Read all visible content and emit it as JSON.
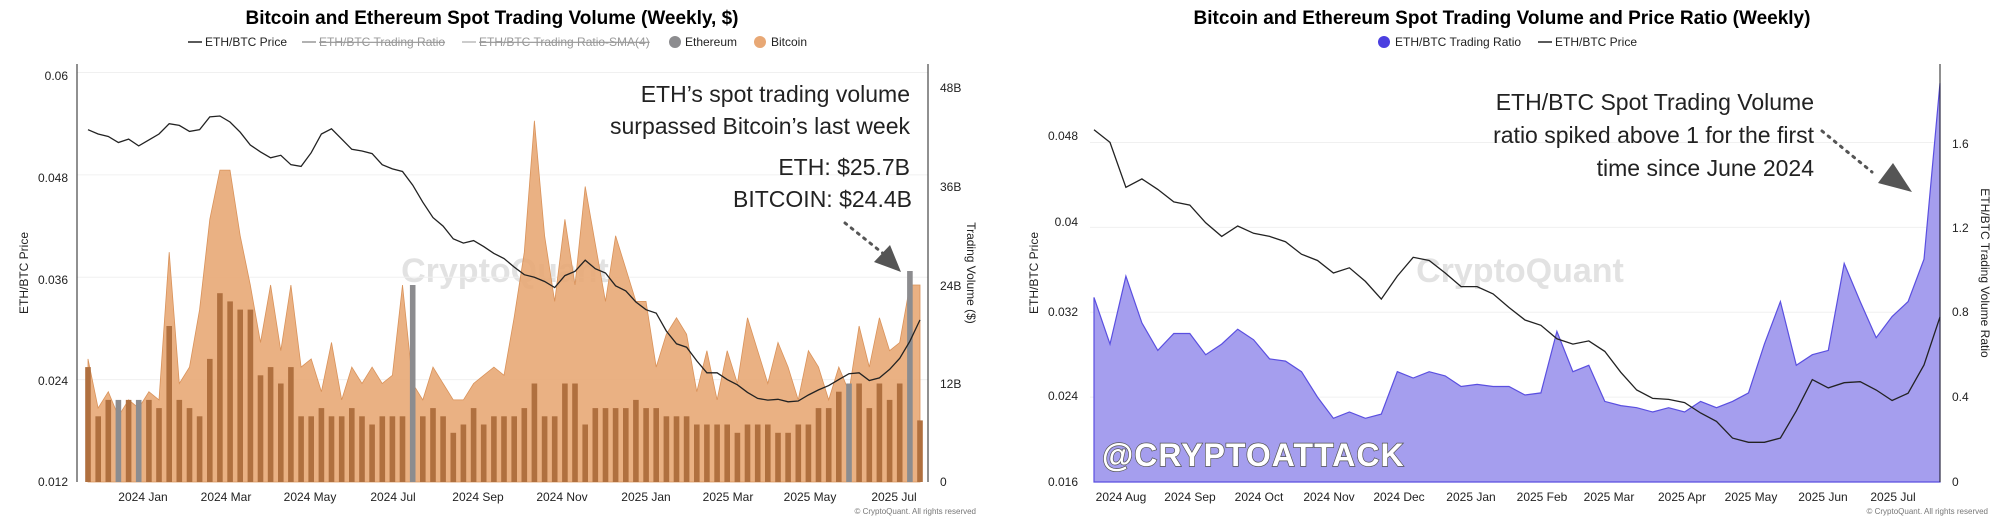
{
  "chart_data": [
    {
      "type": "area",
      "title": "Bitcoin and Ethereum Spot Trading Volume (Weekly, $)",
      "legend": [
        "ETH/BTC Price",
        "ETH/BTC Trading Ratio",
        "ETH/BTC Trading Ratio-SMA(4)",
        "Ethereum",
        "Bitcoin"
      ],
      "legend_placement": "top-center",
      "hidden_series": [
        "ETH/BTC Trading Ratio",
        "ETH/BTC Trading Ratio-SMA(4)"
      ],
      "ylabel_left": "ETH/BTC Price",
      "ylabel_right": "Trading Volume ($)",
      "y_left_ticks": [
        "0.012",
        "0.024",
        "0.036",
        "0.048",
        "0.06"
      ],
      "y_left_lim": [
        0.012,
        0.061
      ],
      "y_right_ticks": [
        "0",
        "12B",
        "24B",
        "36B",
        "48B"
      ],
      "y_right_lim": [
        0,
        48
      ],
      "x_ticks": [
        "2024 Jan",
        "2024 Mar",
        "2024 May",
        "2024 Jul",
        "2024 Sep",
        "2024 Nov",
        "2025 Jan",
        "2025 Mar",
        "2025 May",
        "2025 Jul"
      ],
      "annotation_lines": [
        "ETH’s spot trading volume",
        "surpassed Bitcoin’s last week",
        "ETH: $25.7B",
        "BITCOIN: $24.4B"
      ],
      "watermark": "CryptoQuant",
      "copyright": "© CryptoQuant. All rights reserved",
      "colors": {
        "bitcoin": "#e8a875",
        "ethereum": "#8c8c8f",
        "eth_bar_over_btc": "#b0703f",
        "price": "#222222"
      },
      "series": [
        {
          "name": "Bitcoin",
          "unit": "B USD",
          "values": [
            15,
            9,
            11,
            8,
            10,
            9,
            11,
            10,
            28,
            12,
            14,
            21,
            32,
            38,
            38,
            30,
            24,
            17,
            24,
            16,
            24,
            14,
            15,
            11,
            17,
            10,
            14,
            12,
            14,
            12,
            13,
            24,
            12,
            10,
            14,
            12,
            10,
            10,
            12,
            13,
            14,
            13,
            20,
            28,
            44,
            30,
            22,
            32,
            24,
            36,
            29,
            22,
            30,
            26,
            22,
            22,
            14,
            18,
            20,
            18,
            11,
            16,
            10,
            16,
            12,
            20,
            16,
            12,
            17,
            14,
            10,
            16,
            14,
            10,
            14,
            11,
            19,
            14,
            20,
            16,
            17,
            24,
            24
          ]
        },
        {
          "name": "Ethereum",
          "unit": "B USD",
          "values": [
            14,
            8,
            10,
            10,
            10,
            10,
            10,
            9,
            19,
            10,
            9,
            8,
            15,
            23,
            22,
            21,
            21,
            13,
            14,
            12,
            14,
            8,
            8,
            9,
            8,
            8,
            9,
            8,
            7,
            8,
            8,
            8,
            24,
            8,
            9,
            8,
            6,
            7,
            9,
            7,
            8,
            8,
            8,
            9,
            12,
            8,
            8,
            12,
            12,
            7,
            9,
            9,
            9,
            9,
            10,
            9,
            9,
            8,
            8,
            8,
            7,
            7,
            7,
            7,
            6,
            7,
            7,
            7,
            6,
            6,
            7,
            7,
            9,
            9,
            11,
            12,
            12,
            9,
            12,
            10,
            12,
            25.7,
            7.5
          ]
        },
        {
          "name": "ETH/BTC Price",
          "values": [
            0.0533,
            0.0528,
            0.0525,
            0.0518,
            0.0522,
            0.0514,
            0.0521,
            0.0528,
            0.054,
            0.0538,
            0.0531,
            0.0533,
            0.0548,
            0.0549,
            0.0542,
            0.053,
            0.0515,
            0.0507,
            0.05,
            0.0503,
            0.0492,
            0.049,
            0.0506,
            0.0528,
            0.0534,
            0.0522,
            0.051,
            0.0508,
            0.0505,
            0.0492,
            0.0487,
            0.0484,
            0.0468,
            0.0448,
            0.043,
            0.042,
            0.0405,
            0.04,
            0.0403,
            0.0396,
            0.0388,
            0.0382,
            0.0372,
            0.0363,
            0.036,
            0.0355,
            0.0348,
            0.0362,
            0.0367,
            0.038,
            0.037,
            0.0365,
            0.035,
            0.0344,
            0.0331,
            0.0322,
            0.0318,
            0.0297,
            0.0282,
            0.0278,
            0.0262,
            0.0248,
            0.0248,
            0.024,
            0.0234,
            0.0225,
            0.0218,
            0.0216,
            0.0217,
            0.0214,
            0.0215,
            0.0222,
            0.0228,
            0.0233,
            0.024,
            0.0247,
            0.0248,
            0.0239,
            0.0242,
            0.0252,
            0.0265,
            0.0285,
            0.031
          ]
        }
      ]
    },
    {
      "type": "area",
      "title": "Bitcoin and Ethereum Spot Trading Volume and Price Ratio (Weekly)",
      "legend": [
        "ETH/BTC Trading Ratio",
        "ETH/BTC Price"
      ],
      "legend_placement": "top-center",
      "ylabel_left": "ETH/BTC Price",
      "ylabel_right": "ETH/BTC Trading Volume Ratio",
      "y_left_ticks": [
        "0.016",
        "0.024",
        "0.032",
        "0.04",
        "0.048"
      ],
      "y_left_lim": [
        0.016,
        0.056
      ],
      "y_right_ticks": [
        "0",
        "0.4",
        "0.8",
        "1.2",
        "1.6"
      ],
      "y_right_lim": [
        0,
        1.97
      ],
      "x_ticks": [
        "2024 Aug",
        "2024 Sep",
        "2024 Oct",
        "2024 Nov",
        "2024 Dec",
        "2025 Jan",
        "2025 Feb",
        "2025 Mar",
        "2025 Apr",
        "2025 May",
        "2025 Jun",
        "2025 Jul"
      ],
      "annotation_lines": [
        "ETH/BTC Spot Trading Volume",
        "ratio spiked above 1 for the first",
        "time since June 2024"
      ],
      "watermark": "CryptoQuant",
      "handle": "@CRYPTOATTACK",
      "copyright": "© CryptoQuant. All rights reserved",
      "colors": {
        "ratio": "#6a5fe8",
        "ratio_fill": "#a59eee",
        "price": "#222222"
      },
      "series": [
        {
          "name": "ETH/BTC Trading Ratio",
          "values": [
            0.87,
            0.65,
            0.97,
            0.75,
            0.62,
            0.7,
            0.7,
            0.6,
            0.65,
            0.72,
            0.67,
            0.58,
            0.57,
            0.52,
            0.4,
            0.3,
            0.33,
            0.3,
            0.32,
            0.52,
            0.49,
            0.52,
            0.5,
            0.45,
            0.46,
            0.45,
            0.45,
            0.41,
            0.42,
            0.71,
            0.52,
            0.55,
            0.38,
            0.36,
            0.35,
            0.33,
            0.35,
            0.33,
            0.38,
            0.35,
            0.38,
            0.42,
            0.65,
            0.85,
            0.55,
            0.6,
            0.62,
            1.03,
            0.85,
            0.68,
            0.78,
            0.85,
            1.05,
            1.88
          ]
        },
        {
          "name": "ETH/BTC Price",
          "values": [
            0.0497,
            0.0485,
            0.0442,
            0.045,
            0.044,
            0.0428,
            0.0425,
            0.0408,
            0.0395,
            0.0405,
            0.0398,
            0.0395,
            0.039,
            0.0378,
            0.0372,
            0.036,
            0.0365,
            0.0352,
            0.0335,
            0.0357,
            0.0375,
            0.0372,
            0.036,
            0.0347,
            0.0347,
            0.034,
            0.0327,
            0.0315,
            0.031,
            0.0297,
            0.0292,
            0.0295,
            0.0285,
            0.0265,
            0.0248,
            0.024,
            0.0239,
            0.0236,
            0.0226,
            0.0218,
            0.0202,
            0.0198,
            0.0198,
            0.0202,
            0.0228,
            0.0258,
            0.025,
            0.0255,
            0.0256,
            0.0248,
            0.0238,
            0.0245,
            0.0272,
            0.0318
          ]
        }
      ]
    }
  ]
}
